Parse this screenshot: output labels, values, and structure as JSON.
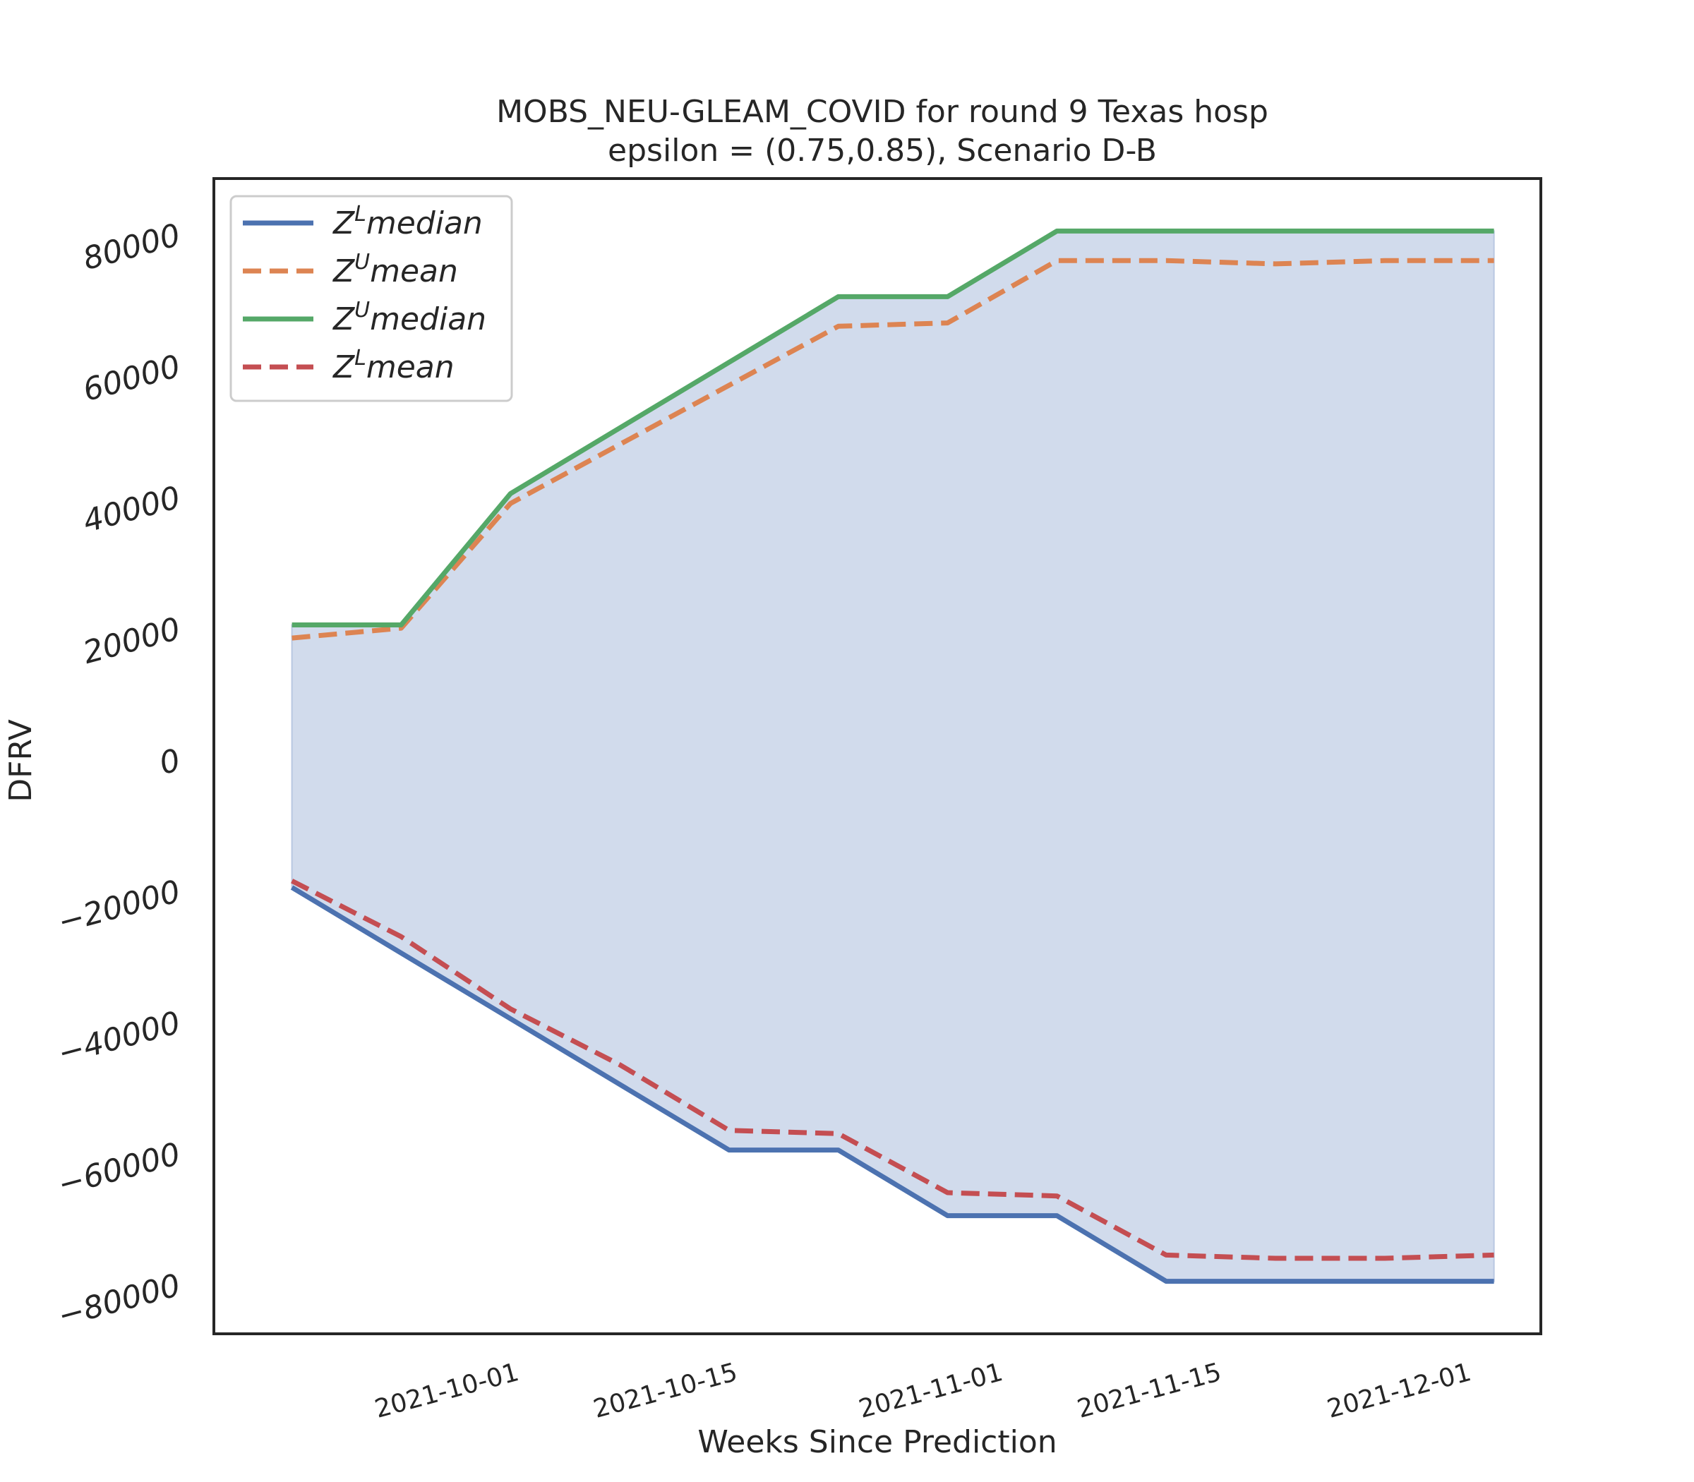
{
  "chart_data": {
    "type": "line",
    "title": "MOBS_NEU-GLEAM_COVID for round 9 Texas  hosp",
    "subtitle": "epsilon = (0.75,0.85), Scenario D-B",
    "xlabel": "Weeks Since Prediction",
    "ylabel": "DFRV",
    "x": [
      "2021-09-18",
      "2021-09-25",
      "2021-10-02",
      "2021-10-09",
      "2021-10-16",
      "2021-10-23",
      "2021-10-30",
      "2021-11-06",
      "2021-11-13",
      "2021-11-20",
      "2021-11-27",
      "2021-12-04"
    ],
    "xticks": [
      "2021-10-01",
      "2021-10-15",
      "2021-11-01",
      "2021-11-15",
      "2021-12-01"
    ],
    "yticks": [
      -80000,
      -60000,
      -40000,
      -20000,
      0,
      20000,
      40000,
      60000,
      80000
    ],
    "xlim": [
      "2021-09-13",
      "2021-12-07"
    ],
    "ylim": [
      -87500,
      88500
    ],
    "grid": false,
    "legend_position": "top-left",
    "fill_between": {
      "lower": "Z^L median",
      "upper": "Z^U median",
      "color": "#d1dbec"
    },
    "series": [
      {
        "name": "Z^L median",
        "sup": "L",
        "base": "median",
        "color": "#4c72b0",
        "dash": false,
        "values": [
          -19500,
          -29500,
          -39500,
          -49500,
          -59500,
          -59500,
          -69500,
          -69500,
          -79500,
          -79500,
          -79500,
          -79500
        ]
      },
      {
        "name": "Z^U mean",
        "sup": "U",
        "base": "mean",
        "color": "#dd8452",
        "dash": true,
        "values": [
          18500,
          20000,
          39000,
          48000,
          57000,
          66000,
          66500,
          76000,
          76000,
          75500,
          76000,
          76000
        ]
      },
      {
        "name": "Z^U median",
        "sup": "U",
        "base": "median",
        "color": "#55a868",
        "dash": false,
        "values": [
          20500,
          20500,
          40500,
          50500,
          60500,
          70500,
          70500,
          80500,
          80500,
          80500,
          80500,
          80500
        ]
      },
      {
        "name": "Z^L mean",
        "sup": "L",
        "base": "mean",
        "color": "#c44e52",
        "dash": true,
        "values": [
          -18500,
          -27000,
          -38000,
          -46500,
          -56500,
          -57000,
          -66000,
          -66500,
          -75500,
          -76000,
          -76000,
          -75500
        ]
      }
    ]
  }
}
